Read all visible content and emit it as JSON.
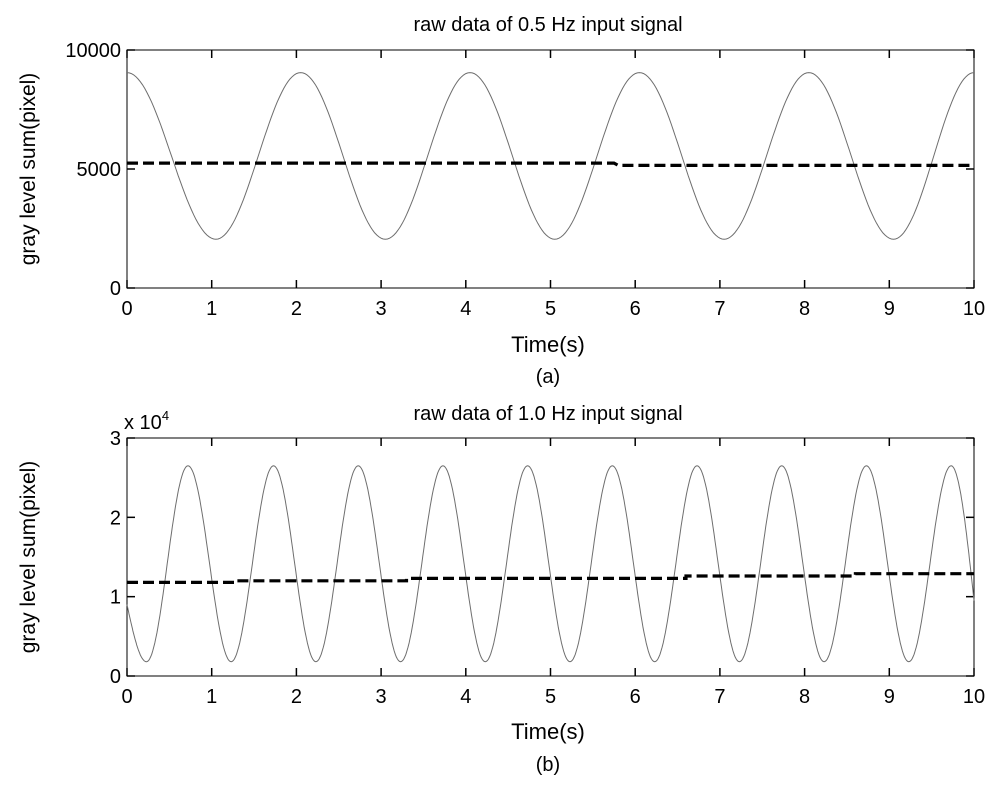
{
  "chart_data": [
    {
      "type": "line",
      "title": "raw data of 0.5 Hz input signal",
      "xlabel": "Time(s)",
      "ylabel": "gray level sum(pixel)",
      "caption": "(a)",
      "xlim": [
        0,
        10
      ],
      "ylim": [
        0,
        10000
      ],
      "xticks": [
        0,
        1,
        2,
        3,
        4,
        5,
        6,
        7,
        8,
        9,
        10
      ],
      "yticks": [
        0,
        5000,
        10000
      ],
      "grid": false,
      "series": [
        {
          "kind": "sinusoid",
          "frequency_hz": 0.5,
          "peak_times": [
            0,
            2.05,
            4.05,
            6.05,
            8.05,
            10.0
          ],
          "trough_times": [
            1.05,
            3.05,
            5.05,
            7.05,
            9.05
          ],
          "max": 9050,
          "min": 2050,
          "color": "#6e6e6e",
          "style": "solid"
        },
        {
          "kind": "step",
          "points": [
            [
              0,
              5250
            ],
            [
              5.75,
              5250
            ],
            [
              5.8,
              5150
            ],
            [
              10,
              5150
            ]
          ],
          "color": "#000000",
          "style": "dashed"
        }
      ]
    },
    {
      "type": "line",
      "title": "raw data of 1.0 Hz input signal",
      "xlabel": "Time(s)",
      "ylabel": "gray level sum(pixel)",
      "caption": "(b)",
      "multiplier": "x 10",
      "multiplier_exponent": "4",
      "xlim": [
        0,
        10
      ],
      "ylim": [
        0,
        30000
      ],
      "xticks": [
        0,
        1,
        2,
        3,
        4,
        5,
        6,
        7,
        8,
        9,
        10
      ],
      "yticks": [
        0,
        10000,
        20000,
        30000
      ],
      "ytick_labels": [
        "0",
        "1",
        "2",
        "3"
      ],
      "grid": false,
      "series": [
        {
          "kind": "sinusoid",
          "frequency_hz": 1.0,
          "peak_times": [
            0.72,
            1.73,
            2.73,
            3.73,
            4.73,
            5.73,
            6.73,
            7.73,
            8.73,
            9.73
          ],
          "trough_times": [
            0.23,
            1.23,
            2.23,
            3.23,
            4.23,
            5.23,
            6.23,
            7.23,
            8.23,
            9.23
          ],
          "max": 26500,
          "min": 1800,
          "start_value": 9000,
          "end_value": 9500,
          "color": "#6e6e6e",
          "style": "solid"
        },
        {
          "kind": "step",
          "points": [
            [
              0,
              11800
            ],
            [
              1.3,
              11800
            ],
            [
              1.3,
              12000
            ],
            [
              3.3,
              12000
            ],
            [
              3.3,
              12300
            ],
            [
              6.6,
              12300
            ],
            [
              6.6,
              12600
            ],
            [
              8.6,
              12600
            ],
            [
              8.6,
              12900
            ],
            [
              10,
              12900
            ]
          ],
          "color": "#000000",
          "style": "dashed"
        }
      ]
    }
  ]
}
